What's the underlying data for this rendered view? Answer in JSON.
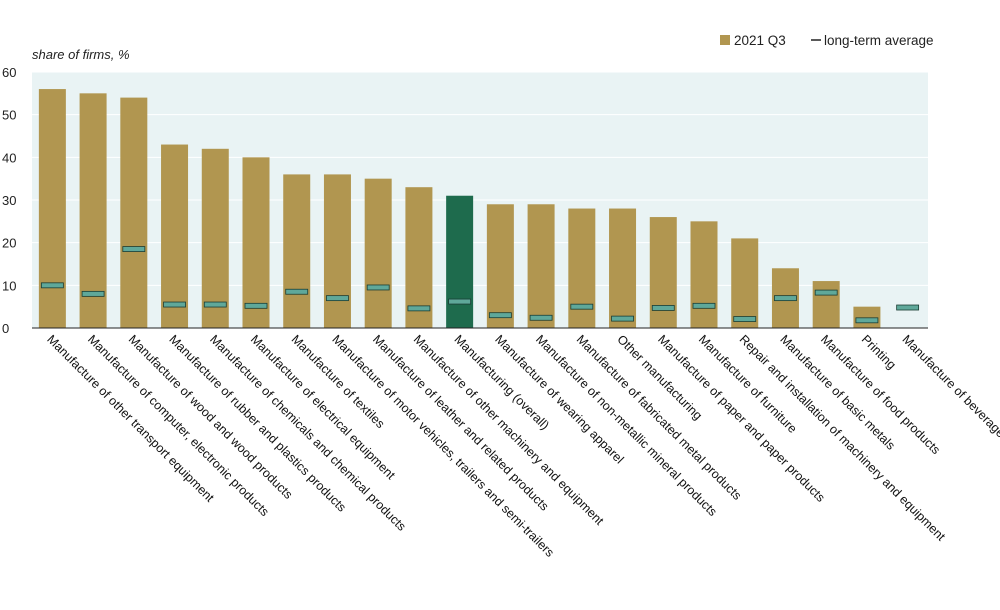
{
  "chart_data": {
    "type": "bar",
    "ylabel": "share of firms, %",
    "ylim": [
      0,
      60
    ],
    "yticks": [
      0,
      10,
      20,
      30,
      40,
      50,
      60
    ],
    "grid": true,
    "legend_position": "top-right",
    "colors": {
      "bar": "#B19650",
      "highlight": "#1E6B4D",
      "average_fill": "#5FA89A",
      "average_stroke": "#1A3D33",
      "plot_bg": "#E9F3F4",
      "grid": "#FFFFFF"
    },
    "categories": [
      "Manufacture of other transport equipment",
      "Manufacture of computer, electronic products",
      "Manufacture of wood and wood products",
      "Manufacture of rubber and plastics products",
      "Manufacture of chemicals and chemical products",
      "Manufacture of electrical equipment",
      "Manufacture of textiles",
      "Manufacture of motor vehicles, trailers and semi-trailers",
      "Manufacture of leather and related products",
      "Manufacture of other machinery and equipment",
      "Manufacturing (overall)",
      "Manufacture of wearing apparel",
      "Manufacture of non-metallic mineral products",
      "Manufacture of fabricated metal products",
      "Other manufacturing",
      "Manufacture of paper and paper products",
      "Manufacture of furniture",
      "Repair and installation of machinery and equipment",
      "Manufacture of basic metals",
      "Manufacture of food products",
      "Printing",
      "Manufacture of beverages"
    ],
    "highlight_category": "Manufacturing (overall)",
    "series": [
      {
        "name": "2021 Q3",
        "type": "bar",
        "values": [
          56,
          55,
          54,
          43,
          42,
          40,
          36,
          36,
          35,
          33,
          31,
          29,
          29,
          28,
          28,
          26,
          25,
          21,
          14,
          11,
          5,
          0
        ]
      },
      {
        "name": "long-term average",
        "type": "marker",
        "values": [
          10,
          8,
          18.5,
          5.5,
          5.5,
          5.2,
          8.5,
          7,
          9.5,
          4.6,
          6.2,
          3,
          2.4,
          5,
          2.2,
          4.7,
          5.2,
          2.1,
          7,
          8.3,
          1.8,
          4.8
        ]
      }
    ]
  }
}
